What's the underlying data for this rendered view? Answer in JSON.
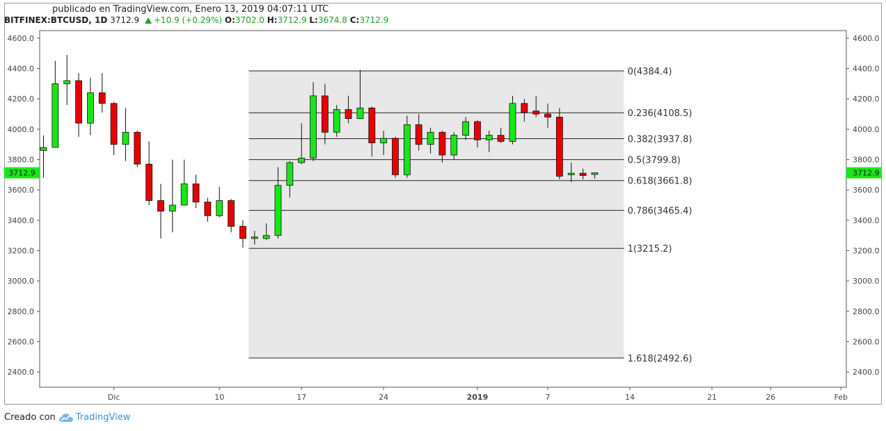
{
  "header": {
    "published": "publicado en TradingView.com, Enero 13, 2019 04:07:11 UTC",
    "symbol": "BITFINEX:BTCUSD, 1D",
    "last": "3712.9",
    "change": "+10.9 (+0.29%)",
    "o_label": "O:",
    "o_val": "3702.0",
    "h_label": "H:",
    "h_val": "3712.9",
    "l_label": "L:",
    "l_val": "3674.8",
    "c_label": "C:",
    "c_val": "3712.9"
  },
  "footer": {
    "created_with": "Creado con",
    "brand": "TradingView"
  },
  "colors": {
    "up": "#19e619",
    "down": "#e60000",
    "price_badge": "#19e619",
    "fib_bg": "#e8e8e8"
  },
  "chart_data": {
    "type": "candlestick",
    "ylim": [
      2300,
      4650
    ],
    "y_ticks": [
      "4600.0",
      "4400.0",
      "4200.0",
      "4000.0",
      "3800.0",
      "3600.0",
      "3400.0",
      "3200.0",
      "3000.0",
      "2800.0",
      "2600.0",
      "2400.0"
    ],
    "y_tick_values": [
      4600,
      4400,
      4200,
      4000,
      3800,
      3600,
      3400,
      3200,
      3000,
      2800,
      2600,
      2400
    ],
    "x_labels": [
      {
        "label": "Dic",
        "day": 6
      },
      {
        "label": "10",
        "day": 15
      },
      {
        "label": "17",
        "day": 22
      },
      {
        "label": "24",
        "day": 29
      },
      {
        "label": "2019",
        "day": 37
      },
      {
        "label": "7",
        "day": 43
      },
      {
        "label": "14",
        "day": 50
      },
      {
        "label": "21",
        "day": 57
      },
      {
        "label": "26",
        "day": 62
      },
      {
        "label": "Feb",
        "day": 68
      }
    ],
    "last_price_badge": "3712.9",
    "last_price_value": 3712.9,
    "candles": [
      {
        "d": 0,
        "o": 3860,
        "h": 3960,
        "l": 3680,
        "c": 3880
      },
      {
        "d": 1,
        "o": 3880,
        "h": 4450,
        "l": 3880,
        "c": 4300
      },
      {
        "d": 2,
        "o": 4300,
        "h": 4490,
        "l": 4160,
        "c": 4320
      },
      {
        "d": 3,
        "o": 4320,
        "h": 4370,
        "l": 3950,
        "c": 4040
      },
      {
        "d": 4,
        "o": 4040,
        "h": 4340,
        "l": 3960,
        "c": 4240
      },
      {
        "d": 5,
        "o": 4240,
        "h": 4370,
        "l": 4110,
        "c": 4170
      },
      {
        "d": 6,
        "o": 4170,
        "h": 4180,
        "l": 3830,
        "c": 3900
      },
      {
        "d": 7,
        "o": 3900,
        "h": 4140,
        "l": 3790,
        "c": 3980
      },
      {
        "d": 8,
        "o": 3980,
        "h": 3990,
        "l": 3750,
        "c": 3770
      },
      {
        "d": 9,
        "o": 3770,
        "h": 3920,
        "l": 3500,
        "c": 3530
      },
      {
        "d": 10,
        "o": 3530,
        "h": 3640,
        "l": 3280,
        "c": 3460
      },
      {
        "d": 11,
        "o": 3460,
        "h": 3800,
        "l": 3320,
        "c": 3500
      },
      {
        "d": 12,
        "o": 3500,
        "h": 3800,
        "l": 3500,
        "c": 3640
      },
      {
        "d": 13,
        "o": 3640,
        "h": 3700,
        "l": 3480,
        "c": 3520
      },
      {
        "d": 14,
        "o": 3520,
        "h": 3550,
        "l": 3390,
        "c": 3430
      },
      {
        "d": 15,
        "o": 3430,
        "h": 3620,
        "l": 3420,
        "c": 3530
      },
      {
        "d": 16,
        "o": 3530,
        "h": 3540,
        "l": 3320,
        "c": 3360
      },
      {
        "d": 17,
        "o": 3360,
        "h": 3400,
        "l": 3220,
        "c": 3280
      },
      {
        "d": 18,
        "o": 3280,
        "h": 3330,
        "l": 3240,
        "c": 3290
      },
      {
        "d": 19,
        "o": 3280,
        "h": 3380,
        "l": 3270,
        "c": 3300
      },
      {
        "d": 20,
        "o": 3300,
        "h": 3750,
        "l": 3280,
        "c": 3630
      },
      {
        "d": 21,
        "o": 3630,
        "h": 3790,
        "l": 3550,
        "c": 3780
      },
      {
        "d": 22,
        "o": 3780,
        "h": 4040,
        "l": 3770,
        "c": 3810
      },
      {
        "d": 23,
        "o": 3810,
        "h": 4310,
        "l": 3790,
        "c": 4220
      },
      {
        "d": 24,
        "o": 4220,
        "h": 4300,
        "l": 3900,
        "c": 3980
      },
      {
        "d": 25,
        "o": 3980,
        "h": 4160,
        "l": 3950,
        "c": 4130
      },
      {
        "d": 26,
        "o": 4130,
        "h": 4220,
        "l": 4040,
        "c": 4070
      },
      {
        "d": 27,
        "o": 4070,
        "h": 4390,
        "l": 4070,
        "c": 4140
      },
      {
        "d": 28,
        "o": 4140,
        "h": 4150,
        "l": 3820,
        "c": 3910
      },
      {
        "d": 29,
        "o": 3910,
        "h": 3990,
        "l": 3830,
        "c": 3940
      },
      {
        "d": 30,
        "o": 3940,
        "h": 3950,
        "l": 3680,
        "c": 3700
      },
      {
        "d": 31,
        "o": 3700,
        "h": 4090,
        "l": 3680,
        "c": 4030
      },
      {
        "d": 32,
        "o": 4030,
        "h": 4100,
        "l": 3860,
        "c": 3900
      },
      {
        "d": 33,
        "o": 3900,
        "h": 4010,
        "l": 3840,
        "c": 3980
      },
      {
        "d": 34,
        "o": 3980,
        "h": 3990,
        "l": 3780,
        "c": 3830
      },
      {
        "d": 35,
        "o": 3830,
        "h": 3980,
        "l": 3800,
        "c": 3960
      },
      {
        "d": 36,
        "o": 3960,
        "h": 4080,
        "l": 3930,
        "c": 4050
      },
      {
        "d": 37,
        "o": 4050,
        "h": 4060,
        "l": 3880,
        "c": 3930
      },
      {
        "d": 38,
        "o": 3930,
        "h": 3990,
        "l": 3850,
        "c": 3960
      },
      {
        "d": 39,
        "o": 3960,
        "h": 4010,
        "l": 3910,
        "c": 3920
      },
      {
        "d": 40,
        "o": 3920,
        "h": 4220,
        "l": 3900,
        "c": 4170
      },
      {
        "d": 41,
        "o": 4170,
        "h": 4200,
        "l": 4050,
        "c": 4110
      },
      {
        "d": 42,
        "o": 4120,
        "h": 4220,
        "l": 4080,
        "c": 4100
      },
      {
        "d": 43,
        "o": 4100,
        "h": 4170,
        "l": 4010,
        "c": 4080
      },
      {
        "d": 44,
        "o": 4080,
        "h": 4140,
        "l": 3670,
        "c": 3690
      },
      {
        "d": 45,
        "o": 3700,
        "h": 3780,
        "l": 3650,
        "c": 3710
      },
      {
        "d": 46,
        "o": 3710,
        "h": 3740,
        "l": 3670,
        "c": 3695
      },
      {
        "d": 47,
        "o": 3702,
        "h": 3713,
        "l": 3675,
        "c": 3713
      }
    ],
    "fib": {
      "start_day": 17.5,
      "end_day": 49.5,
      "levels": [
        {
          "label": "0(4384.4)",
          "value": 4384.4
        },
        {
          "label": "0.236(4108.5)",
          "value": 4108.5
        },
        {
          "label": "0.382(3937.8)",
          "value": 3937.8
        },
        {
          "label": "0.5(3799.8)",
          "value": 3799.8
        },
        {
          "label": "0.618(3661.8)",
          "value": 3661.8
        },
        {
          "label": "0.786(3465.4)",
          "value": 3465.4
        },
        {
          "label": "1(3215.2)",
          "value": 3215.2
        },
        {
          "label": "1.618(2492.6)",
          "value": 2492.6
        }
      ]
    }
  }
}
